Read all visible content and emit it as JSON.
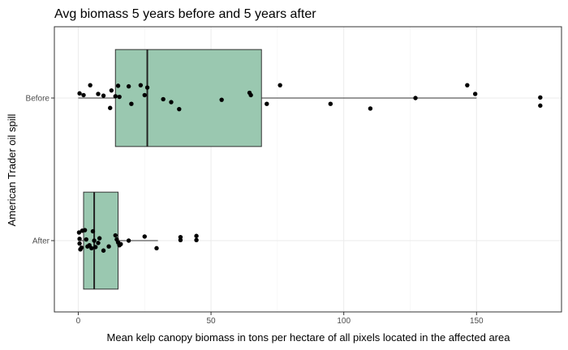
{
  "chart_data": {
    "type": "boxplot",
    "orientation": "horizontal",
    "title": "Avg biomass 5 years before and 5 years after",
    "xlabel": "Mean kelp canopy biomass in tons per hectare  of all pixels located in the affected area",
    "ylabel": "American Trader oil spill",
    "xlim": [
      -9,
      182
    ],
    "xticks": [
      0,
      50,
      100,
      150
    ],
    "categories": [
      "Before",
      "After"
    ],
    "box_color": "#9ac8b0",
    "grid": true,
    "series": [
      {
        "name": "Before",
        "q1": 14,
        "median": 26,
        "q3": 69,
        "whisker_low": 0,
        "whisker_high": 150,
        "points": [
          {
            "x": 0.5,
            "j": 0.08
          },
          {
            "x": 2,
            "j": 0.05
          },
          {
            "x": 4.5,
            "j": 0.22
          },
          {
            "x": 7.5,
            "j": 0.07
          },
          {
            "x": 9.5,
            "j": 0.04
          },
          {
            "x": 12,
            "j": -0.17
          },
          {
            "x": 12.5,
            "j": 0.13
          },
          {
            "x": 14,
            "j": 0.03
          },
          {
            "x": 15,
            "j": 0.21
          },
          {
            "x": 15.5,
            "j": 0.02
          },
          {
            "x": 19,
            "j": 0.2
          },
          {
            "x": 20,
            "j": -0.1
          },
          {
            "x": 23.5,
            "j": 0.22
          },
          {
            "x": 25,
            "j": 0.05
          },
          {
            "x": 26,
            "j": 0.18
          },
          {
            "x": 32,
            "j": -0.02
          },
          {
            "x": 35,
            "j": -0.07
          },
          {
            "x": 38,
            "j": -0.19
          },
          {
            "x": 54,
            "j": -0.03
          },
          {
            "x": 64.5,
            "j": 0.09
          },
          {
            "x": 65,
            "j": 0.05
          },
          {
            "x": 71,
            "j": -0.1
          },
          {
            "x": 76,
            "j": 0.22
          },
          {
            "x": 95,
            "j": -0.1
          },
          {
            "x": 110,
            "j": -0.18
          },
          {
            "x": 127,
            "j": 0.0
          },
          {
            "x": 146.5,
            "j": 0.22
          },
          {
            "x": 149.5,
            "j": 0.07
          },
          {
            "x": 174,
            "j": 0.01
          },
          {
            "x": 174,
            "j": -0.13
          }
        ]
      },
      {
        "name": "After",
        "q1": 2,
        "median": 6,
        "q3": 15,
        "whisker_low": 0,
        "whisker_high": 30,
        "points": [
          {
            "x": 0.3,
            "j": 0.14
          },
          {
            "x": 0.5,
            "j": 0.03
          },
          {
            "x": 0.5,
            "j": -0.05
          },
          {
            "x": 0.8,
            "j": -0.15
          },
          {
            "x": 1.2,
            "j": -0.12
          },
          {
            "x": 1.5,
            "j": 0.17
          },
          {
            "x": 2.5,
            "j": 0.18
          },
          {
            "x": 3,
            "j": 0.02
          },
          {
            "x": 3.5,
            "j": -0.1
          },
          {
            "x": 4.2,
            "j": -0.08
          },
          {
            "x": 5,
            "j": -0.13
          },
          {
            "x": 5.5,
            "j": 0.16
          },
          {
            "x": 6,
            "j": 0.0
          },
          {
            "x": 6.5,
            "j": -0.11
          },
          {
            "x": 7.5,
            "j": -0.04
          },
          {
            "x": 8,
            "j": 0.04
          },
          {
            "x": 9.5,
            "j": -0.17
          },
          {
            "x": 11.5,
            "j": -0.1
          },
          {
            "x": 14,
            "j": 0.09
          },
          {
            "x": 14.5,
            "j": 0.02
          },
          {
            "x": 15,
            "j": -0.03
          },
          {
            "x": 15.5,
            "j": -0.08
          },
          {
            "x": 16,
            "j": -0.06
          },
          {
            "x": 19,
            "j": 0.0
          },
          {
            "x": 25,
            "j": 0.07
          },
          {
            "x": 29.5,
            "j": -0.13
          },
          {
            "x": 38.5,
            "j": 0.06
          },
          {
            "x": 38.5,
            "j": 0.01
          },
          {
            "x": 44.5,
            "j": 0.08
          },
          {
            "x": 44.5,
            "j": 0.01
          }
        ]
      }
    ]
  }
}
